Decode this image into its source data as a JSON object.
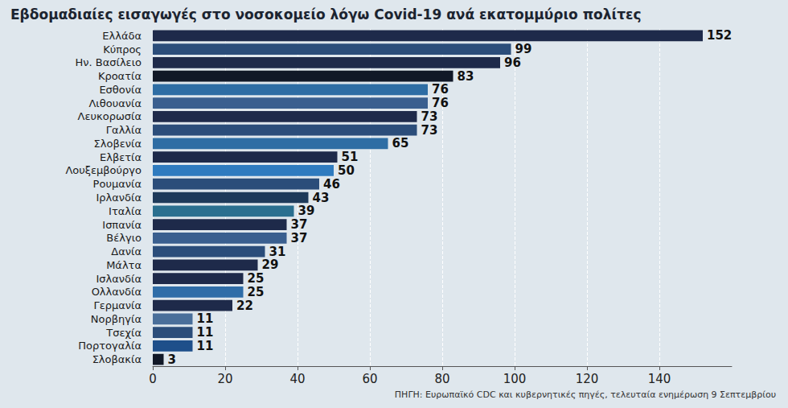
{
  "chart_data": {
    "type": "bar",
    "title": "Εβδομαδιαίες εισαγωγές στο νοσοκομείο λόγω Covid-19 ανά εκατομμύριο πολίτες",
    "annotations": [
      "ΠΗΓΗ: Ευρωπαϊκό CDC και κυβερνητικές πηγές, τελευταία ενημέρωση 9 Σεπτεμβρίου"
    ],
    "orientation": "horizontal",
    "categories": [
      "Ελλάδα",
      "Κύπρος",
      "Ην. Βασίλειο",
      "Κροατία",
      "Εσθονία",
      "Λιθουανία",
      "Λευκορωσία",
      "Γαλλία",
      "Σλοβενία",
      "Ελβετία",
      "Λουξεμβούργο",
      "Ρουμανία",
      "Ιρλανδία",
      "Ιταλία",
      "Ισπανία",
      "Βέλγιο",
      "Δανία",
      "Μάλτα",
      "Ισλανδία",
      "Ολλανδία",
      "Γερμανία",
      "Νορβηγία",
      "Τσεχία",
      "Πορτογαλία",
      "Σλοβακία"
    ],
    "values": [
      152,
      99,
      96,
      83,
      76,
      76,
      73,
      73,
      65,
      51,
      50,
      46,
      43,
      39,
      37,
      37,
      31,
      29,
      25,
      25,
      22,
      11,
      11,
      11,
      3
    ],
    "colors": [
      "#1e2a4a",
      "#2b4d7a",
      "#1e2a4a",
      "#111827",
      "#2e6da4",
      "#3a5f8f",
      "#1e2a4a",
      "#2b4d7a",
      "#2e6da4",
      "#1e2a4a",
      "#2f7bbf",
      "#2b4d7a",
      "#1e3a5a",
      "#2a6f8f",
      "#1e2a4a",
      "#3a5f8f",
      "#2b4d7a",
      "#1e2a4a",
      "#1e2a4a",
      "#2f6da8",
      "#1e2a4a",
      "#4a6f9a",
      "#2b4d7a",
      "#1e4f8a",
      "#111827"
    ],
    "xlim": [
      0,
      160
    ],
    "xticks": [
      0,
      20,
      40,
      60,
      80,
      100,
      120,
      140
    ],
    "grid": true,
    "data_labels": true
  }
}
